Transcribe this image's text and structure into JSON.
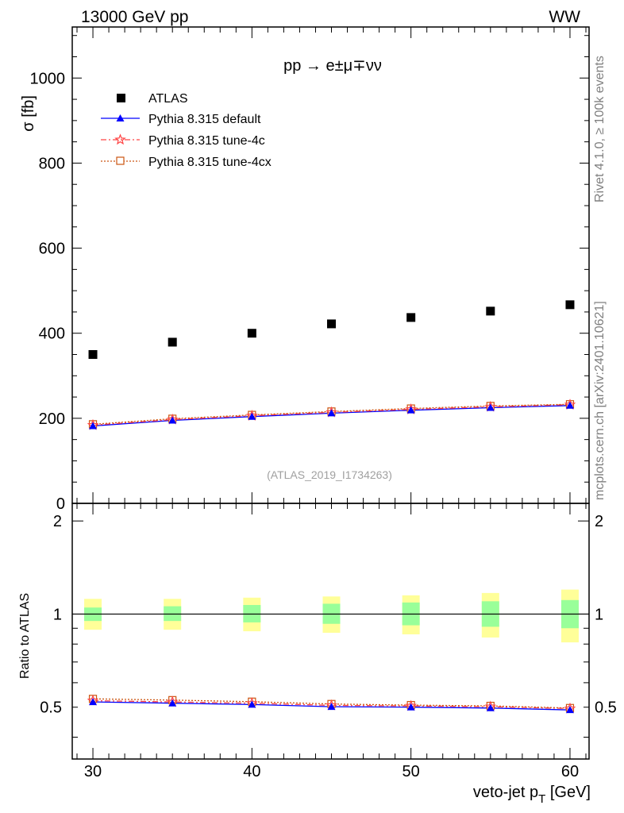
{
  "header": {
    "left": "13000 GeV pp",
    "right": "WW"
  },
  "process_label": "pp → e±μ∓νν",
  "side": {
    "rivet": "Rivet 4.1.0, ≥ 100k events",
    "mcplots": "mcplots.cern.ch [arXiv:2401.10621]"
  },
  "analysis_id": "(ATLAS_2019_I1734263)",
  "colors": {
    "atlas": "#000000",
    "default": "#0000ff",
    "tune4c": "#ff4444",
    "tune4cx": "#cc5511",
    "band_inner": "#99ff99",
    "band_outer": "#ffff99"
  },
  "chart_data": [
    {
      "type": "scatter",
      "panel": "main",
      "ylabel": "σ [fb]",
      "ylim": [
        0,
        1120
      ],
      "xlim": [
        28.7,
        61.2
      ],
      "y_ticks": [
        0,
        200,
        400,
        600,
        800,
        1000
      ],
      "y_tick_labels": [
        "0",
        "200",
        "400",
        "600",
        "800",
        "1000"
      ],
      "x": [
        30,
        35,
        40,
        45,
        50,
        55,
        60
      ],
      "series": [
        {
          "name": "ATLAS",
          "style": "square",
          "values": [
            350,
            379,
            400,
            422,
            437,
            452,
            467
          ]
        },
        {
          "name": "Pythia 8.315 default",
          "style": "line-triangle",
          "values": [
            182,
            195,
            204,
            212,
            219,
            225,
            230
          ]
        },
        {
          "name": "Pythia 8.315 tune-4c",
          "style": "dashdot-star",
          "values": [
            184,
            197,
            206,
            214,
            221,
            227,
            232
          ]
        },
        {
          "name": "Pythia 8.315 tune-4cx",
          "style": "dotted-opensquare",
          "values": [
            186,
            199,
            208,
            216,
            223,
            229,
            233
          ]
        }
      ]
    },
    {
      "type": "line",
      "panel": "ratio",
      "ylabel": "Ratio to ATLAS",
      "xlabel": "veto-jet p_T [GeV]",
      "ylim": [
        0.34,
        2.28
      ],
      "xlim": [
        28.7,
        61.2
      ],
      "y_ticks": [
        0.5,
        1,
        2
      ],
      "y_tick_labels": [
        "0.5",
        "1",
        "2"
      ],
      "x": [
        30,
        35,
        40,
        45,
        50,
        55,
        60
      ],
      "x_tick_labels": [
        "30",
        "40",
        "50",
        "60"
      ],
      "bands": {
        "inner_low": [
          0.95,
          0.95,
          0.94,
          0.93,
          0.92,
          0.91,
          0.9
        ],
        "inner_high": [
          1.05,
          1.06,
          1.07,
          1.08,
          1.09,
          1.1,
          1.11
        ],
        "outer_low": [
          0.89,
          0.89,
          0.88,
          0.87,
          0.86,
          0.84,
          0.81
        ],
        "outer_high": [
          1.12,
          1.12,
          1.13,
          1.14,
          1.15,
          1.17,
          1.2
        ]
      },
      "series": [
        {
          "name": "Pythia 8.315 default",
          "values": [
            0.52,
            0.515,
            0.51,
            0.502,
            0.5,
            0.497,
            0.49
          ]
        },
        {
          "name": "Pythia 8.315 tune-4c",
          "values": [
            0.525,
            0.52,
            0.515,
            0.507,
            0.505,
            0.502,
            0.495
          ]
        },
        {
          "name": "Pythia 8.315 tune-4cx",
          "values": [
            0.532,
            0.527,
            0.521,
            0.512,
            0.508,
            0.505,
            0.497
          ]
        }
      ]
    }
  ]
}
